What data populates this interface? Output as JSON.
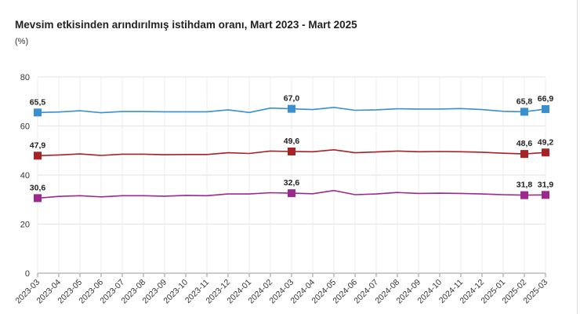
{
  "chart_data": {
    "type": "line",
    "title": "Mevsim etkisinden arındırılmış istihdam oranı, Mart 2023 - Mart 2025",
    "ylabel": "(%)",
    "xlabel": "",
    "ylim": [
      0,
      80
    ],
    "yticks": [
      0,
      20,
      40,
      60,
      80
    ],
    "grid": true,
    "categories": [
      "2023-03",
      "2023-04",
      "2023-05",
      "2023-06",
      "2023-07",
      "2023-08",
      "2023-09",
      "2023-10",
      "2023-11",
      "2023-12",
      "2024-01",
      "2024-02",
      "2024-03",
      "2024-04",
      "2024-05",
      "2024-06",
      "2024-07",
      "2024-08",
      "2024-09",
      "2024-10",
      "2024-11",
      "2024-12",
      "2025-01",
      "2025-02",
      "2025-03"
    ],
    "series": [
      {
        "color": "#3a8fd0",
        "values": [
          65.5,
          65.7,
          66.2,
          65.4,
          65.9,
          65.9,
          65.8,
          65.8,
          65.8,
          66.6,
          65.5,
          67.3,
          67.0,
          66.7,
          67.6,
          66.4,
          66.6,
          67.0,
          66.9,
          66.9,
          67.1,
          66.7,
          66.0,
          65.8,
          66.9
        ],
        "labels": [
          {
            "index": 0,
            "text": "65,5"
          },
          {
            "index": 12,
            "text": "67,0"
          },
          {
            "index": 23,
            "text": "65,8"
          },
          {
            "index": 24,
            "text": "66,9"
          }
        ]
      },
      {
        "color": "#a82124",
        "values": [
          47.9,
          48.2,
          48.6,
          48.0,
          48.5,
          48.5,
          48.3,
          48.4,
          48.4,
          49.1,
          48.8,
          49.8,
          49.6,
          49.5,
          50.3,
          49.1,
          49.4,
          49.8,
          49.5,
          49.6,
          49.5,
          49.3,
          48.9,
          48.6,
          49.2
        ],
        "labels": [
          {
            "index": 0,
            "text": "47,9"
          },
          {
            "index": 12,
            "text": "49,6"
          },
          {
            "index": 23,
            "text": "48,6"
          },
          {
            "index": 24,
            "text": "49,2"
          }
        ]
      },
      {
        "color": "#9c2a8c",
        "values": [
          30.6,
          31.3,
          31.6,
          31.1,
          31.6,
          31.6,
          31.4,
          31.7,
          31.6,
          32.3,
          32.3,
          32.8,
          32.6,
          32.4,
          33.7,
          32.0,
          32.3,
          32.9,
          32.5,
          32.6,
          32.5,
          32.3,
          32.0,
          31.8,
          31.9
        ],
        "labels": [
          {
            "index": 0,
            "text": "30,6"
          },
          {
            "index": 12,
            "text": "32,6"
          },
          {
            "index": 23,
            "text": "31,8"
          },
          {
            "index": 24,
            "text": "31,9"
          }
        ]
      }
    ]
  }
}
